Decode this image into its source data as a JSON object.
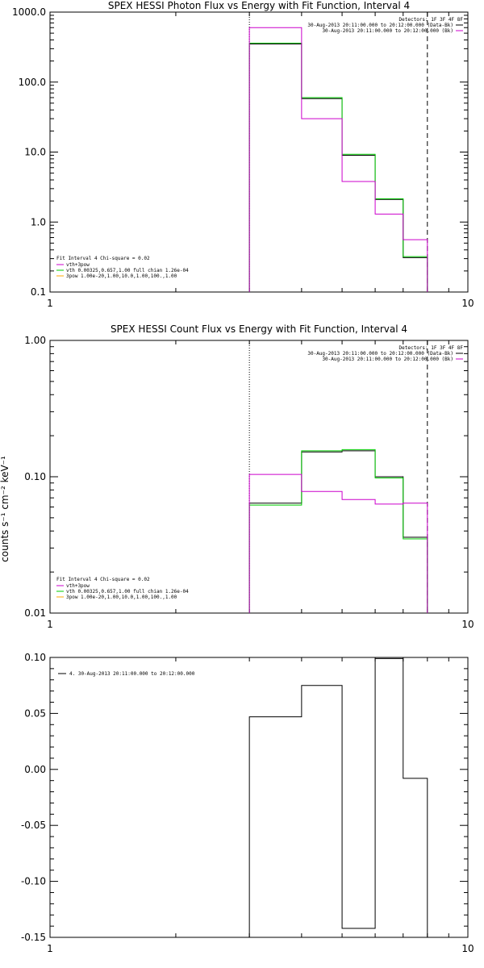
{
  "chart_data": [
    {
      "type": "line",
      "title": "SPEX HESSI Photon Flux vs Energy with Fit Function, Interval 4",
      "xscale": "log",
      "yscale": "log",
      "xlim": [
        1,
        10
      ],
      "ylim": [
        0.1,
        1000
      ],
      "xtick_labels": [
        "1",
        "10"
      ],
      "ytick_values": [
        0.1,
        1,
        10,
        100,
        1000
      ],
      "ytick_labels": [
        "0.1",
        "1.0",
        "10.0",
        "100.0",
        "1000.0"
      ],
      "vlines": [
        {
          "x": 3.0,
          "style": "dotted"
        },
        {
          "x": 8.0,
          "style": "dashed"
        }
      ],
      "legend_top": {
        "header": "Detectors: 1F 3F 4F 8F",
        "entries": [
          {
            "label": "30-Aug-2013 20:11:00.000 to 20:12:00.000 (Data-Bk)",
            "color": "#000000"
          },
          {
            "label": "30-Aug-2013 20:11:00.000 to 20:12:00.000 (Bk)",
            "color": "#cc00cc"
          }
        ]
      },
      "legend_bottom": {
        "header": "Fit Interval 4   Chi-square = 0.02",
        "entries": [
          {
            "label": "vth+3pow",
            "color": "#cc00cc"
          },
          {
            "label": "vth 0.00325,0.657,1.00  full chian 1.26e-04",
            "color": "#00cc00"
          },
          {
            "label": "3pow 1.00e-20,1.00,10.0,1.00,100.,1.00",
            "color": "#ffaa00"
          }
        ]
      },
      "bin_edges": [
        3.0,
        4.0,
        5.0,
        6.0,
        7.0,
        8.0
      ],
      "series": [
        {
          "color": "#000000",
          "values": [
            350,
            58,
            9.0,
            2.1,
            0.31
          ]
        },
        {
          "color": "#00cc00",
          "values": [
            360,
            60,
            9.3,
            2.15,
            0.32
          ]
        },
        {
          "color": "#cc00cc",
          "values": [
            600,
            30,
            3.8,
            1.3,
            0.56
          ]
        }
      ]
    },
    {
      "type": "line",
      "title": "SPEX HESSI Count Flux vs Energy with Fit Function, Interval 4",
      "xscale": "log",
      "yscale": "log",
      "xlim": [
        1,
        10
      ],
      "ylim": [
        0.01,
        1
      ],
      "xtick_labels": [
        "1",
        "10"
      ],
      "ytick_values": [
        0.01,
        0.1,
        1
      ],
      "ytick_labels": [
        "0.01",
        "0.10",
        "1.00"
      ],
      "ylabel": "counts s⁻¹ cm⁻² keV⁻¹",
      "vlines": [
        {
          "x": 3.0,
          "style": "dotted"
        },
        {
          "x": 8.0,
          "style": "dashed"
        }
      ],
      "legend_top": {
        "header": "Detectors: 1F 3F 4F 8F",
        "entries": [
          {
            "label": "30-Aug-2013 20:11:00.000 to 20:12:00.000 (Data-Bk)",
            "color": "#000000"
          },
          {
            "label": "30-Aug-2013 20:11:00.000 to 20:12:00.000 (Bk)",
            "color": "#cc00cc"
          }
        ]
      },
      "legend_bottom": {
        "header": "Fit Interval 4   Chi-square = 0.02",
        "entries": [
          {
            "label": "vth+3pow",
            "color": "#cc00cc"
          },
          {
            "label": "vth 0.00325,0.657,1.00  full chian 1.26e-04",
            "color": "#00cc00"
          },
          {
            "label": "3pow 1.00e-20,1.00,10.0,1.00,100.,1.00",
            "color": "#ffaa00"
          }
        ]
      },
      "bin_edges": [
        3.0,
        4.0,
        5.0,
        6.0,
        7.0,
        8.0
      ],
      "series": [
        {
          "color": "#000000",
          "values": [
            0.064,
            0.152,
            0.155,
            0.1,
            0.036
          ]
        },
        {
          "color": "#00cc00",
          "values": [
            0.062,
            0.155,
            0.158,
            0.098,
            0.035
          ]
        },
        {
          "color": "#cc00cc",
          "values": [
            0.104,
            0.078,
            0.068,
            0.063,
            0.064
          ]
        }
      ]
    },
    {
      "type": "line",
      "title": "",
      "xscale": "log",
      "yscale": "linear",
      "xlim": [
        1,
        10
      ],
      "ylim": [
        -0.15,
        0.1
      ],
      "xtick_labels": [
        "1",
        "10"
      ],
      "ytick_values": [
        -0.15,
        -0.1,
        -0.05,
        0.0,
        0.05,
        0.1
      ],
      "ytick_labels": [
        "-0.15",
        "-0.10",
        "-0.05",
        "0.00",
        "0.05",
        "0.10"
      ],
      "legend_top_left": {
        "entries": [
          {
            "label": "4. 30-Aug-2013 20:11:00.000 to 20:12:00.000",
            "color": "#000000"
          }
        ]
      },
      "bin_edges": [
        3.0,
        4.0,
        5.0,
        6.0,
        7.0,
        8.0
      ],
      "series": [
        {
          "color": "#000000",
          "values": [
            0.047,
            0.075,
            -0.142,
            0.099,
            -0.008
          ]
        }
      ]
    }
  ]
}
